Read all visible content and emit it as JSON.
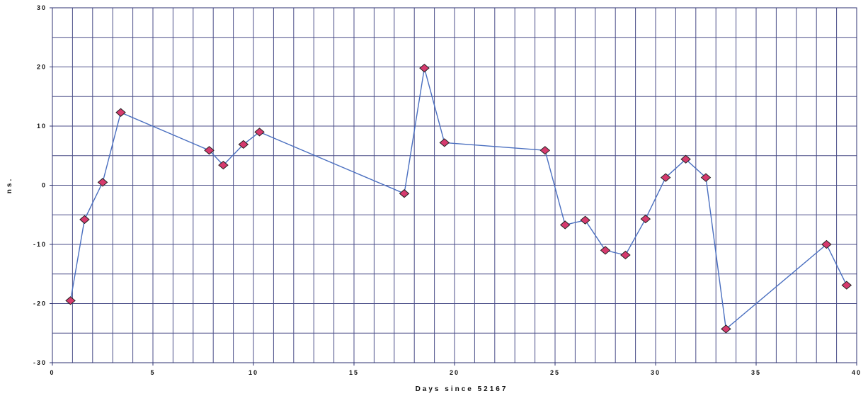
{
  "chart_data": {
    "type": "line",
    "title": "",
    "xlabel": "Days since 52167",
    "ylabel": "ns.",
    "xlim": [
      0,
      40
    ],
    "ylim": [
      -30,
      30
    ],
    "x_ticks": [
      0,
      5,
      10,
      15,
      20,
      25,
      30,
      35,
      40
    ],
    "y_ticks": [
      30,
      20,
      10,
      0,
      -10,
      -20,
      -30
    ],
    "x_tick_labels": [
      "0",
      "5",
      "10",
      "15",
      "20",
      "25",
      "30",
      "35",
      "40"
    ],
    "y_tick_labels": [
      "30",
      "20",
      "10",
      "0",
      "-10",
      "-20",
      "-30"
    ],
    "grid": true,
    "legend": "none",
    "colors": {
      "line": "#4a6fc0",
      "marker_fill": "#d63a6e",
      "marker_stroke": "#222222",
      "grid": "#4b4e88"
    },
    "series": [
      {
        "x": [
          0.9,
          1.6,
          2.5,
          3.4,
          7.8,
          8.5,
          9.5,
          10.3,
          17.5,
          18.5,
          19.5,
          24.5,
          25.5,
          26.5,
          27.5,
          28.5,
          29.5,
          30.5,
          31.5,
          32.5,
          33.5,
          38.5,
          39.5
        ],
        "y": [
          -19.5,
          -5.8,
          0.5,
          12.3,
          5.9,
          3.4,
          6.9,
          9.0,
          -1.4,
          19.8,
          7.2,
          5.9,
          -6.7,
          -5.9,
          -11.0,
          -11.8,
          -5.7,
          1.3,
          4.4,
          1.3,
          -24.3,
          -10.0,
          -16.9
        ]
      }
    ]
  }
}
